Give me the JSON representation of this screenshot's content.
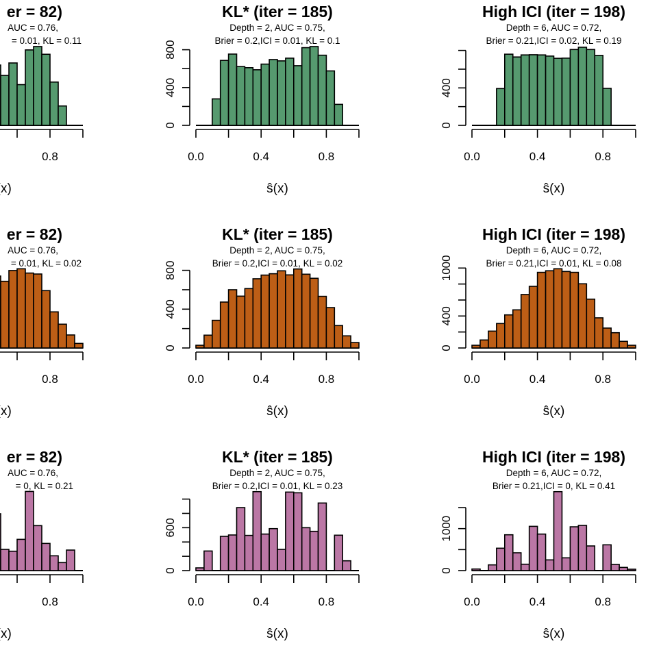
{
  "chart_data": [
    {
      "type": "bar",
      "title": "er = 82)",
      "subtitle": [
        "AUC = 0.76,",
        "= 0.01, KL = 0.11"
      ],
      "xlabel": "ŝ(x)",
      "color": "#569a6f",
      "bin_width": 0.05,
      "bin_start": 0.45,
      "values": [
        638,
        528,
        660,
        431,
        798,
        834,
        752,
        458,
        205,
        0,
        0
      ],
      "ylim": [
        0,
        850
      ],
      "yticks": [],
      "ytick_labels": [],
      "xticks": [
        0.8
      ],
      "xtick_labels": [
        "0.8"
      ],
      "xlim": [
        0,
        1
      ]
    },
    {
      "type": "bar",
      "title": "KL* (iter = 185)",
      "subtitle": [
        "Depth = 2, AUC = 0.75,",
        "Brier = 0.2,ICI = 0.01, KL = 0.1"
      ],
      "xlabel": "ŝ(x)",
      "color": "#569a6f",
      "bin_width": 0.05,
      "bin_start": 0.0,
      "values": [
        0,
        0,
        280,
        687,
        754,
        622,
        610,
        588,
        648,
        696,
        682,
        711,
        631,
        822,
        834,
        742,
        576,
        222,
        0,
        0
      ],
      "ylim": [
        0,
        850
      ],
      "yticks": [
        0,
        200,
        400,
        600,
        800
      ],
      "ytick_labels": [
        "0",
        "",
        "400",
        "",
        "800"
      ],
      "xticks": [
        0,
        0.4,
        0.8
      ],
      "xtick_labels": [
        "0.0",
        "0.4",
        "0.8"
      ],
      "xlim": [
        0,
        1
      ]
    },
    {
      "type": "bar",
      "title": "High ICI (iter = 198)",
      "subtitle": [
        "Depth = 6, AUC = 0.72,",
        "Brier = 0.21,ICI = 0.02, KL = 0.19"
      ],
      "xlabel": "ŝ(x)",
      "color": "#569a6f",
      "bin_width": 0.05,
      "bin_start": 0.0,
      "values": [
        0,
        0,
        0,
        393,
        760,
        730,
        752,
        754,
        752,
        740,
        716,
        718,
        810,
        834,
        810,
        747,
        395,
        0,
        0,
        0
      ],
      "ylim": [
        0,
        850
      ],
      "yticks": [
        0,
        200,
        400,
        600,
        800
      ],
      "ytick_labels": [
        "0",
        "",
        "400",
        "",
        ""
      ],
      "xticks": [
        0,
        0.4,
        0.8
      ],
      "xtick_labels": [
        "0.0",
        "0.4",
        "0.8"
      ],
      "xlim": [
        0,
        1
      ]
    },
    {
      "type": "bar",
      "title": "er = 82)",
      "subtitle": [
        "AUC = 0.76,",
        "= 0.01, KL = 0.02"
      ],
      "xlabel": "ŝ(x)",
      "color": "#bd5e16",
      "bin_width": 0.05,
      "bin_start": 0.45,
      "values": [
        741,
        687,
        798,
        816,
        772,
        762,
        591,
        372,
        245,
        134,
        47
      ],
      "ylim": [
        0,
        850
      ],
      "yticks": [],
      "ytick_labels": [],
      "xticks": [
        0.8
      ],
      "xtick_labels": [
        "0.8"
      ],
      "xlim": [
        0,
        1
      ]
    },
    {
      "type": "bar",
      "title": "KL* (iter = 185)",
      "subtitle": [
        "Depth = 2, AUC = 0.75,",
        "Brier = 0.2,ICI = 0.01, KL = 0.02"
      ],
      "xlabel": "ŝ(x)",
      "color": "#bd5e16",
      "bin_width": 0.05,
      "bin_start": 0.0,
      "values": [
        28,
        132,
        285,
        473,
        600,
        534,
        612,
        713,
        751,
        765,
        795,
        753,
        814,
        760,
        718,
        532,
        416,
        231,
        125,
        56
      ],
      "ylim": [
        0,
        850
      ],
      "yticks": [
        0,
        200,
        400,
        600,
        800
      ],
      "ytick_labels": [
        "0",
        "",
        "400",
        "",
        "800"
      ],
      "xticks": [
        0,
        0.4,
        0.8
      ],
      "xtick_labels": [
        "0.0",
        "0.4",
        "0.8"
      ],
      "xlim": [
        0,
        1
      ]
    },
    {
      "type": "bar",
      "title": "High ICI (iter = 198)",
      "subtitle": [
        "Depth = 6, AUC = 0.72,",
        "Brier = 0.21,ICI = 0.01, KL = 0.08"
      ],
      "xlabel": "ŝ(x)",
      "color": "#bd5e16",
      "bin_width": 0.05,
      "bin_start": 0.0,
      "values": [
        34,
        100,
        211,
        306,
        414,
        477,
        669,
        771,
        946,
        966,
        991,
        957,
        946,
        803,
        611,
        377,
        249,
        191,
        83,
        34
      ],
      "ylim": [
        0,
        1000
      ],
      "yticks": [
        0,
        200,
        400,
        600,
        800,
        1000
      ],
      "ytick_labels": [
        "0",
        "",
        "400",
        "",
        "",
        "1000"
      ],
      "xticks": [
        0,
        0.4,
        0.8
      ],
      "xtick_labels": [
        "0.0",
        "0.4",
        "0.8"
      ],
      "xlim": [
        0,
        1
      ]
    },
    {
      "type": "bar",
      "title": "er = 82)",
      "subtitle": [
        "AUC = 0.76,",
        "= 0, KL = 0.21"
      ],
      "xlabel": "ŝ(x)",
      "color": "#bb77a5",
      "bin_width": 0.05,
      "bin_start": 0.45,
      "values": [
        795,
        297,
        271,
        437,
        1107,
        629,
        380,
        207,
        112,
        287,
        0
      ],
      "ylim": [
        0,
        1100
      ],
      "yticks": [],
      "ytick_labels": [],
      "xticks": [
        0.8
      ],
      "xtick_labels": [
        "0.8"
      ],
      "xlim": [
        0,
        1
      ]
    },
    {
      "type": "bar",
      "title": "KL* (iter = 185)",
      "subtitle": [
        "Depth = 2, AUC = 0.75,",
        "Brier = 0.2,ICI = 0.01, KL = 0.23"
      ],
      "xlabel": "ŝ(x)",
      "color": "#bb77a5",
      "bin_width": 0.05,
      "bin_start": 0.0,
      "values": [
        38,
        274,
        0,
        479,
        498,
        881,
        492,
        1104,
        511,
        587,
        297,
        1098,
        1088,
        600,
        549,
        945,
        0,
        495,
        137,
        0
      ],
      "ylim": [
        0,
        1100
      ],
      "yticks": [
        0,
        200,
        400,
        600,
        800,
        1000
      ],
      "ytick_labels": [
        "0",
        "",
        "",
        "600",
        "",
        ""
      ],
      "xticks": [
        0,
        0.4,
        0.8
      ],
      "xtick_labels": [
        "0.0",
        "0.4",
        "0.8"
      ],
      "xlim": [
        0,
        1
      ]
    },
    {
      "type": "bar",
      "title": "High ICI (iter = 198)",
      "subtitle": [
        "Depth = 6, AUC = 0.72,",
        "Brier = 0.21,ICI = 0, KL = 0.41"
      ],
      "xlabel": "ŝ(x)",
      "color": "#bb77a5",
      "bin_width": 0.05,
      "bin_start": 0.0,
      "values": [
        38,
        0,
        136,
        533,
        853,
        424,
        152,
        1054,
        870,
        255,
        1880,
        304,
        1043,
        1076,
        587,
        0,
        614,
        147,
        76,
        33
      ],
      "ylim": [
        0,
        1880
      ],
      "yticks": [
        0,
        500,
        1000,
        1500
      ],
      "ytick_labels": [
        "0",
        "",
        "1000",
        ""
      ],
      "xticks": [
        0,
        0.4,
        0.8
      ],
      "xtick_labels": [
        "0.0",
        "0.4",
        "0.8"
      ],
      "xlim": [
        0,
        1
      ]
    }
  ]
}
